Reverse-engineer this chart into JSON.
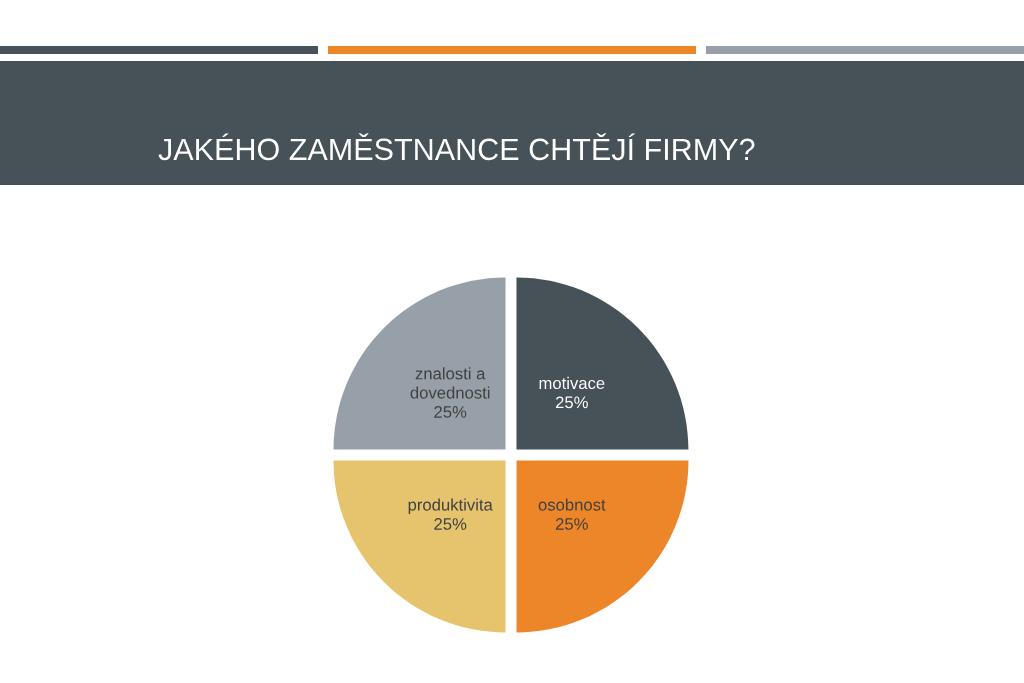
{
  "chart_data": {
    "type": "pie",
    "title": "JAKÉHO ZAMĚSTNANCE CHTĚJÍ FIRMY?",
    "categories": [
      "motivace",
      "osobnost",
      "produktivita",
      "znalosti a\ndovednosti"
    ],
    "values": [
      25,
      25,
      25,
      25
    ],
    "colors": [
      "#475258",
      "#ed8628",
      "#e5c46d",
      "#97a0a8"
    ],
    "value_labels": [
      "25%",
      "25%",
      "25%",
      "25%"
    ],
    "legend": false
  }
}
